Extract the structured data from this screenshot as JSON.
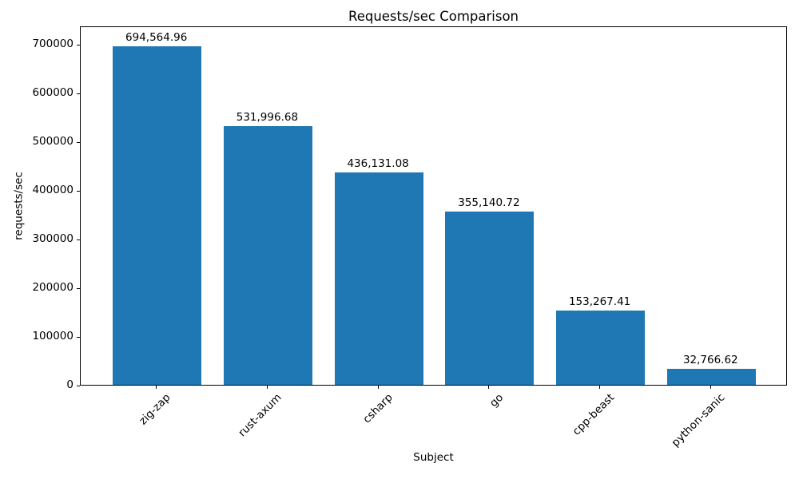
{
  "chart_data": {
    "type": "bar",
    "title": "Requests/sec Comparison",
    "xlabel": "Subject",
    "ylabel": "requests/sec",
    "categories": [
      "zig-zap",
      "rust-axum",
      "csharp",
      "go",
      "cpp-beast",
      "python-sanic"
    ],
    "values": [
      694564.96,
      531996.68,
      436131.08,
      355140.72,
      153267.41,
      32766.62
    ],
    "value_labels": [
      "694,564.96",
      "531,996.68",
      "436,131.08",
      "355,140.72",
      "153,267.41",
      "32,766.62"
    ],
    "bar_color": "#1f77b4",
    "text_color": "#000000",
    "ylim": [
      0,
      737700
    ],
    "yticks": [
      0,
      100000,
      200000,
      300000,
      400000,
      500000,
      600000,
      700000
    ],
    "ytick_labels": [
      "0",
      "100000",
      "200000",
      "300000",
      "400000",
      "500000",
      "600000",
      "700000"
    ],
    "x_tick_rotation": 45,
    "grid": false,
    "legend": null
  }
}
